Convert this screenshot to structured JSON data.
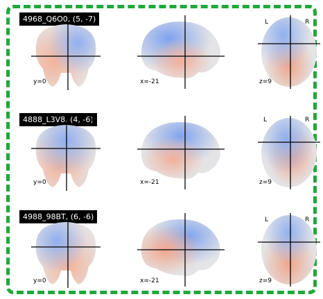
{
  "rows": [
    {
      "label": "4968_Q6O0, (5, -7)",
      "coronal_coord": "y=0",
      "sagittal_coord": "x=-21",
      "axial_coord": "z=9"
    },
    {
      "label": "4888_L3V8, (4, -6)",
      "coronal_coord": "y=0",
      "sagittal_coord": "x=-21",
      "axial_coord": "z=9"
    },
    {
      "label": "4988_98BT, (6, -6)",
      "coronal_coord": "y=0",
      "sagittal_coord": "x=-21",
      "axial_coord": "z=9"
    }
  ],
  "orientation": {
    "left": "L",
    "right": "R"
  },
  "colors": {
    "frame": "#1fa83a",
    "positive": "#f0a58a",
    "negative": "#7fa3ee",
    "neutral": "#e4e4e4"
  }
}
